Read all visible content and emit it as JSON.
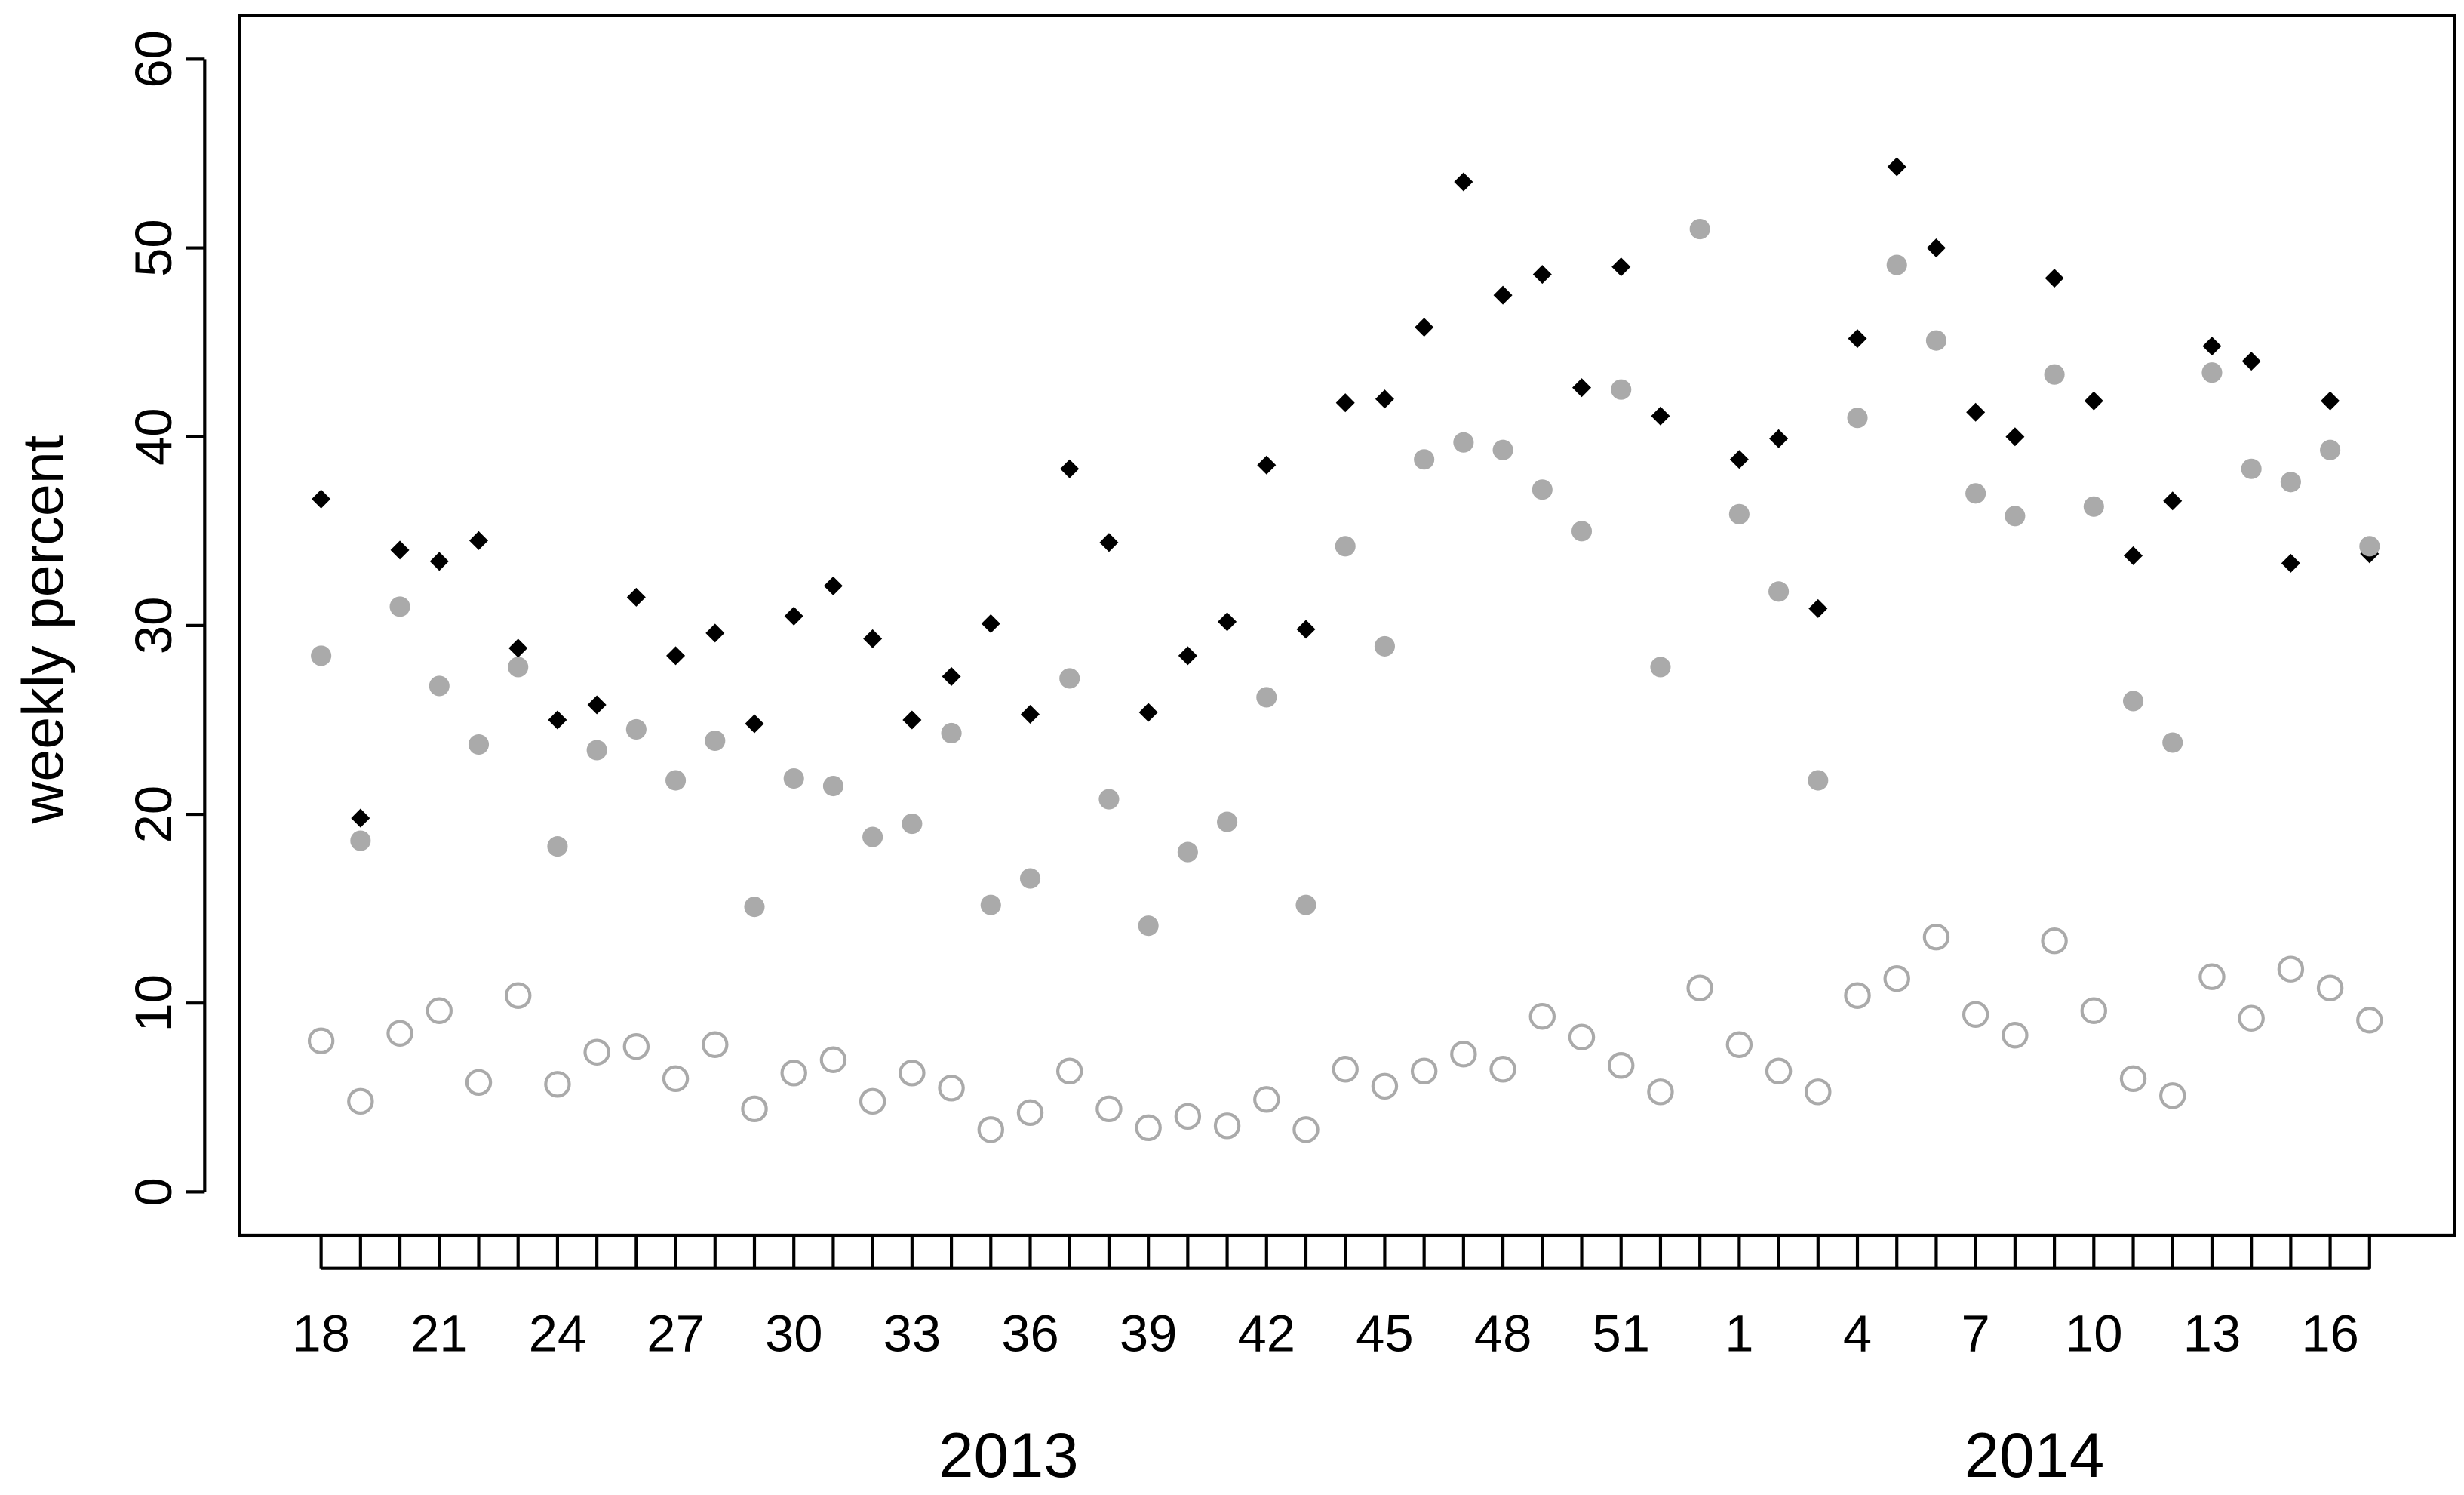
{
  "chart_data": {
    "type": "scatter",
    "y_label": "weekly percent",
    "categories": [
      "18",
      null,
      null,
      "21",
      null,
      null,
      "24",
      null,
      null,
      "27",
      null,
      null,
      "30",
      null,
      null,
      "33",
      null,
      null,
      "36",
      null,
      null,
      "39",
      null,
      null,
      "42",
      null,
      null,
      "45",
      null,
      null,
      "48",
      null,
      null,
      "51",
      null,
      null,
      "1",
      null,
      null,
      "4",
      null,
      null,
      "7",
      null,
      null,
      "10",
      null,
      null,
      "13",
      null,
      null,
      "16",
      null
    ],
    "annotations": [
      "2013",
      "2014"
    ],
    "ylim": [
      -2.3,
      62.3
    ],
    "yticks": [
      0,
      10,
      20,
      30,
      40,
      50,
      60
    ],
    "grid": false,
    "series": [
      {
        "color": "#000000",
        "marker": "diamond",
        "filled": true,
        "values": [
          36.7,
          19.8,
          34.0,
          33.4,
          34.5,
          28.8,
          25.0,
          25.8,
          31.5,
          28.4,
          29.6,
          24.8,
          30.5,
          32.1,
          29.3,
          25.0,
          27.3,
          30.1,
          25.3,
          38.3,
          34.4,
          25.4,
          28.4,
          30.2,
          38.5,
          29.8,
          41.8,
          42.0,
          45.8,
          53.5,
          47.5,
          48.6,
          42.6,
          49.0,
          41.1,
          null,
          38.8,
          39.9,
          30.9,
          45.2,
          54.3,
          50.0,
          41.3,
          40.0,
          48.4,
          41.9,
          33.7,
          36.6,
          44.8,
          44.0,
          33.3,
          41.9,
          33.8
        ]
      },
      {
        "color": "#aaaaaa",
        "marker": "circle",
        "filled": true,
        "values": [
          28.4,
          18.6,
          31.0,
          26.8,
          23.7,
          27.8,
          18.3,
          23.4,
          24.5,
          21.8,
          23.9,
          15.1,
          21.9,
          21.5,
          18.8,
          19.5,
          24.3,
          15.2,
          16.6,
          27.2,
          20.8,
          14.1,
          18.0,
          19.6,
          26.2,
          15.2,
          34.2,
          28.9,
          38.8,
          39.7,
          39.3,
          37.2,
          35.0,
          42.5,
          27.8,
          51.0,
          35.9,
          31.8,
          21.8,
          41.0,
          49.1,
          45.1,
          37.0,
          35.8,
          43.3,
          36.3,
          26.0,
          23.8,
          43.4,
          38.3,
          37.6,
          39.3,
          34.2
        ]
      },
      {
        "color": "#aaaaaa",
        "marker": "circle",
        "filled": false,
        "values": [
          8.0,
          4.8,
          8.4,
          9.6,
          5.8,
          10.4,
          5.7,
          7.4,
          7.7,
          6.0,
          7.8,
          4.4,
          6.3,
          7.0,
          4.8,
          6.3,
          5.5,
          3.3,
          4.2,
          6.4,
          4.4,
          3.4,
          4.0,
          3.5,
          4.9,
          3.3,
          6.5,
          5.6,
          6.4,
          7.3,
          6.5,
          9.3,
          8.2,
          6.7,
          5.3,
          10.8,
          7.8,
          6.4,
          5.3,
          10.4,
          11.3,
          13.5,
          9.4,
          8.3,
          13.3,
          9.6,
          6.0,
          5.1,
          11.4,
          9.2,
          11.8,
          10.8,
          9.1
        ]
      }
    ]
  }
}
